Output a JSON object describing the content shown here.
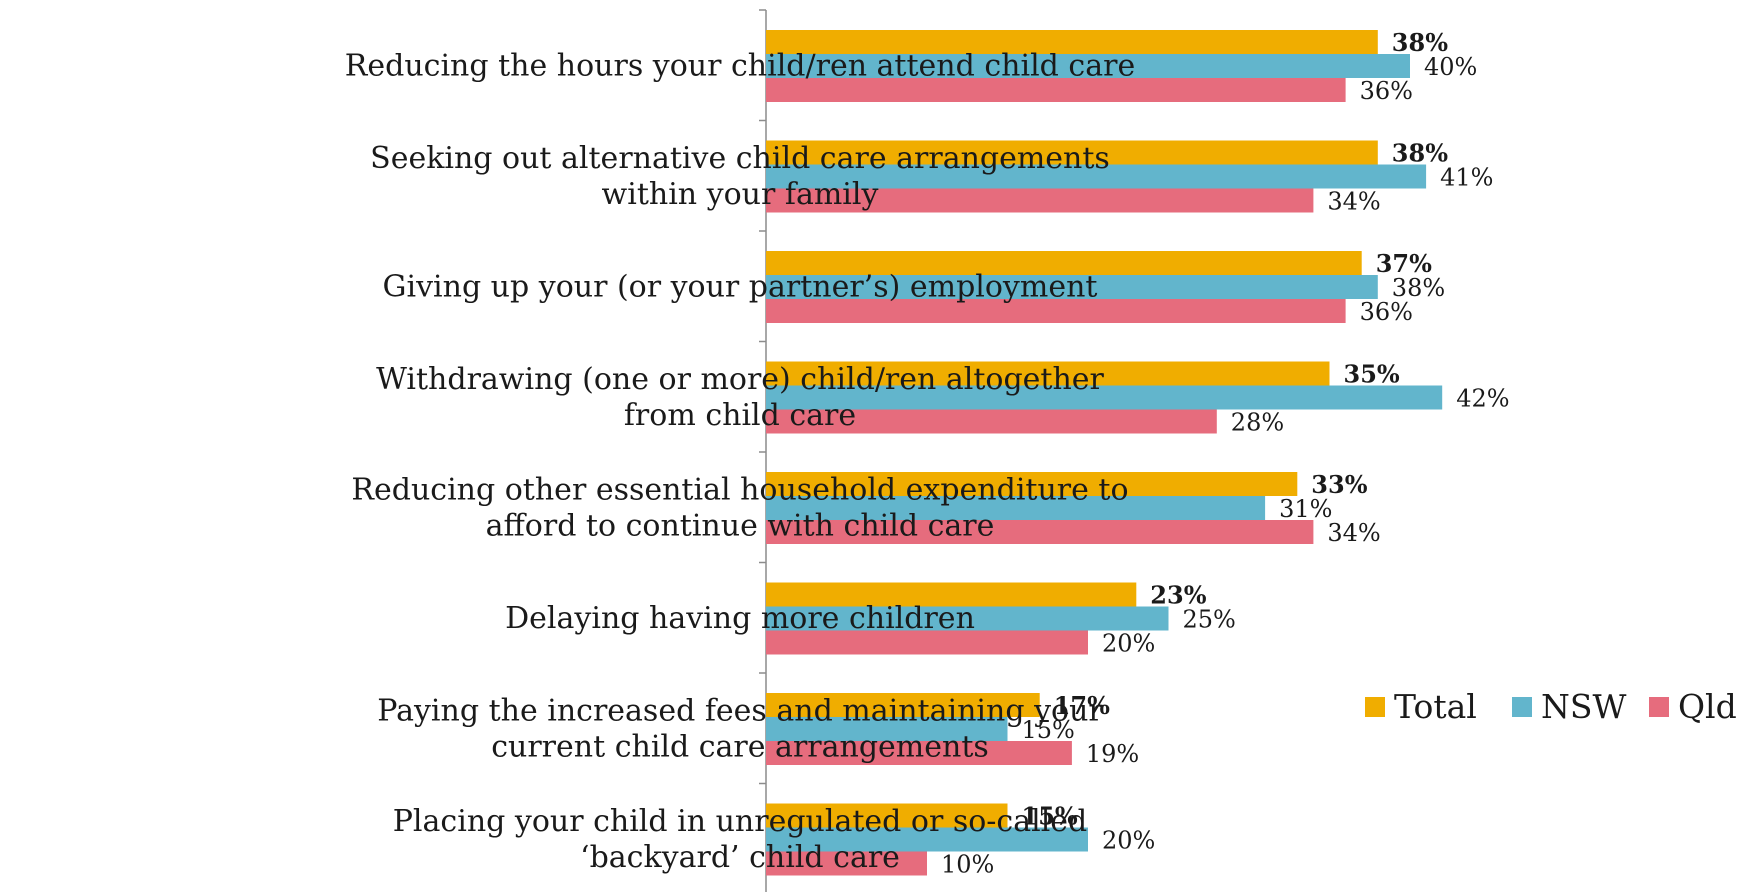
{
  "chart_data": {
    "type": "bar",
    "orientation": "horizontal",
    "title": "",
    "xlabel": "",
    "ylabel": "",
    "xlim": [
      0,
      45
    ],
    "grid": false,
    "legend": "right",
    "categories": [
      [
        "Reducing the hours your child/ren attend child care"
      ],
      [
        "Seeking out alternative child care arrangements",
        "within your family"
      ],
      [
        "Giving up your (or your partner’s) employment"
      ],
      [
        "Withdrawing (one or more) child/ren altogether",
        "from child care"
      ],
      [
        "Reducing other essential household expenditure to",
        "afford to continue with child care"
      ],
      [
        "Delaying having more children"
      ],
      [
        "Paying the increased fees and maintaining your",
        "current child care arrangements"
      ],
      [
        "Placing your child in unregulated or so-called",
        "‘backyard’ child care"
      ]
    ],
    "series": [
      {
        "name": "Total",
        "color": "#f0ad00",
        "bold_labels": true,
        "values": [
          38,
          38,
          37,
          35,
          33,
          23,
          17,
          15
        ]
      },
      {
        "name": "NSW",
        "color": "#62b5cc",
        "bold_labels": false,
        "values": [
          40,
          41,
          38,
          42,
          31,
          25,
          15,
          20
        ]
      },
      {
        "name": "Qld",
        "color": "#e66c7d",
        "bold_labels": false,
        "values": [
          36,
          34,
          36,
          28,
          34,
          20,
          19,
          10
        ]
      }
    ],
    "value_suffix": "%"
  }
}
